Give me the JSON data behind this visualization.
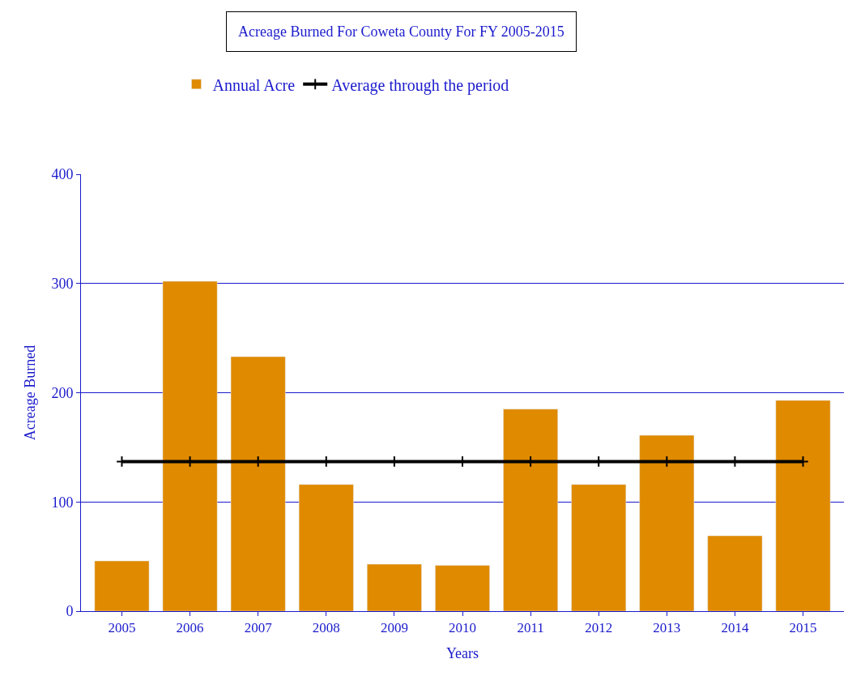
{
  "chart_data": {
    "type": "bar",
    "title": "Acreage Burned For Coweta County For FY 2005-2015",
    "xlabel": "Years",
    "ylabel": "Acreage Burned",
    "categories": [
      "2005",
      "2006",
      "2007",
      "2008",
      "2009",
      "2010",
      "2011",
      "2012",
      "2013",
      "2014",
      "2015"
    ],
    "series": [
      {
        "name": "Annual Acre",
        "color": "#e08a00",
        "values": [
          46,
          302,
          233,
          116,
          43,
          42,
          185,
          116,
          161,
          69,
          193
        ]
      },
      {
        "name": "Average through the period",
        "type": "line",
        "color": "#000000",
        "marker": "cross",
        "values": [
          137,
          137,
          137,
          137,
          137,
          137,
          137,
          137,
          137,
          137,
          137
        ]
      }
    ],
    "ylim": [
      0,
      400
    ],
    "yticks": [
      0,
      100,
      200,
      300,
      400
    ],
    "grid": "y",
    "legend": "top"
  }
}
